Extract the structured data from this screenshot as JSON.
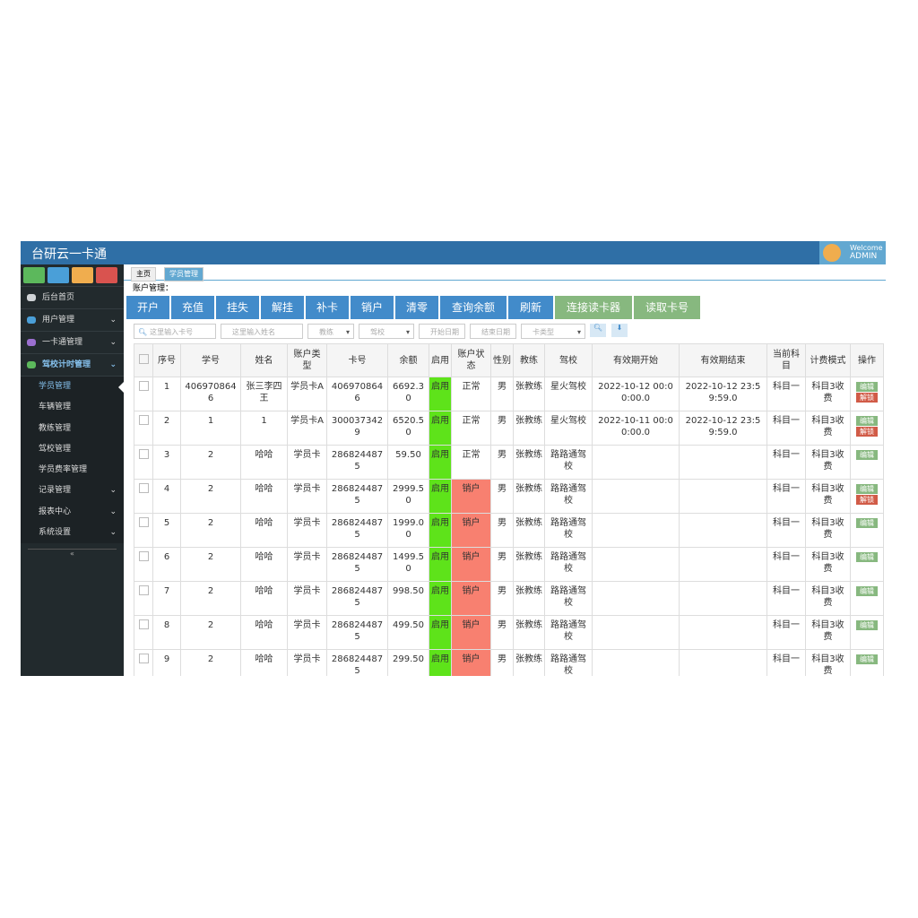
{
  "header": {
    "brand": "台研云一卡通",
    "welcome": "Welcome",
    "user": "ADMIN"
  },
  "sidebar": {
    "shortcut_colors": [
      "#5cb85c",
      "#4a9fd8",
      "#f0ad4e",
      "#d9534f"
    ],
    "items": [
      {
        "label": "后台首页",
        "icon_color": "#cfd3d6"
      },
      {
        "label": "用户管理",
        "icon_color": "#4a9fd8",
        "expand": true
      },
      {
        "label": "一卡通管理",
        "icon_color": "#9b6fd0",
        "expand": true
      },
      {
        "label": "驾校计时管理",
        "icon_color": "#5cb85c",
        "expand": true,
        "active": true
      }
    ],
    "subitems": [
      {
        "label": "学员管理",
        "active": true
      },
      {
        "label": "车辆管理"
      },
      {
        "label": "教练管理"
      },
      {
        "label": "驾校管理"
      },
      {
        "label": "学员费率管理"
      },
      {
        "label": "记录管理",
        "expand": true
      },
      {
        "label": "报表中心",
        "expand": true
      },
      {
        "label": "系统设置",
        "expand": true
      }
    ]
  },
  "tabs": [
    "主页",
    "学员管理"
  ],
  "section_label": "账户管理：",
  "buttons": [
    {
      "label": "开户",
      "color": "#428bca"
    },
    {
      "label": "充值",
      "color": "#428bca"
    },
    {
      "label": "挂失",
      "color": "#428bca"
    },
    {
      "label": "解挂",
      "color": "#428bca"
    },
    {
      "label": "补卡",
      "color": "#428bca"
    },
    {
      "label": "销户",
      "color": "#428bca"
    },
    {
      "label": "清零",
      "color": "#428bca"
    },
    {
      "label": "查询余额",
      "color": "#428bca"
    },
    {
      "label": "刷新",
      "color": "#428bca"
    },
    {
      "label": "连接读卡器",
      "color": "#87b87f"
    },
    {
      "label": "读取卡号",
      "color": "#87b87f"
    }
  ],
  "filters": [
    {
      "placeholder": "这里输入卡号",
      "width": 92,
      "search": true
    },
    {
      "placeholder": "这里输入姓名",
      "width": 92
    },
    {
      "placeholder": "教练",
      "width": 52,
      "select": true
    },
    {
      "placeholder": "驾校",
      "width": 62,
      "select": true
    },
    {
      "placeholder": "开始日期",
      "width": 52
    },
    {
      "placeholder": "结束日期",
      "width": 52
    },
    {
      "placeholder": "卡类型",
      "width": 72,
      "select": true
    }
  ],
  "table": {
    "enabled_color": "#5ee31a",
    "columns": [
      "序号",
      "学号",
      "姓名",
      "账户类型",
      "卡号",
      "余额",
      "启用",
      "账户状态",
      "性别",
      "教练",
      "驾校",
      "有效期开始",
      "有效期结束",
      "当前科目",
      "计费模式",
      "操作"
    ],
    "rows": [
      {
        "cells": [
          "1",
          "4069708646",
          "张三李四王",
          "学员卡A",
          "4069708646",
          "6692.30",
          "启用",
          "正常",
          "男",
          "张教练",
          "星火驾校",
          "2022-10-12 00:00:00.0",
          "2022-10-12 23:59:59.0",
          "科目一",
          "科目3收费"
        ],
        "status_color": "#ffffff",
        "actions": [
          "编辑",
          "解锁"
        ]
      },
      {
        "cells": [
          "2",
          "1",
          "1",
          "学员卡A",
          "3000373429",
          "6520.50",
          "启用",
          "正常",
          "男",
          "张教练",
          "星火驾校",
          "2022-10-11 00:00:00.0",
          "2022-10-12 23:59:59.0",
          "科目一",
          "科目3收费"
        ],
        "status_color": "#ffffff",
        "actions": [
          "编辑",
          "解锁"
        ]
      },
      {
        "cells": [
          "3",
          "2",
          "哈哈",
          "学员卡",
          "2868244875",
          "59.50",
          "启用",
          "正常",
          "男",
          "张教练",
          "路路通驾校",
          null,
          null,
          "科目一",
          "科目3收费"
        ],
        "status_color": "#ffffff",
        "actions": [
          "编辑"
        ]
      },
      {
        "cells": [
          "4",
          "2",
          "哈哈",
          "学员卡",
          "2868244875",
          "2999.50",
          "启用",
          "销户",
          "男",
          "张教练",
          "路路通驾校",
          null,
          null,
          "科目一",
          "科目3收费"
        ],
        "status_color": "#f88070",
        "actions": [
          "编辑",
          "解锁"
        ]
      },
      {
        "cells": [
          "5",
          "2",
          "哈哈",
          "学员卡",
          "2868244875",
          "1999.00",
          "启用",
          "销户",
          "男",
          "张教练",
          "路路通驾校",
          null,
          null,
          "科目一",
          "科目3收费"
        ],
        "status_color": "#f88070",
        "actions": [
          "编辑"
        ]
      },
      {
        "cells": [
          "6",
          "2",
          "哈哈",
          "学员卡",
          "2868244875",
          "1499.50",
          "启用",
          "销户",
          "男",
          "张教练",
          "路路通驾校",
          null,
          null,
          "科目一",
          "科目3收费"
        ],
        "status_color": "#f88070",
        "actions": [
          "编辑"
        ]
      },
      {
        "cells": [
          "7",
          "2",
          "哈哈",
          "学员卡",
          "2868244875",
          "998.50",
          "启用",
          "销户",
          "男",
          "张教练",
          "路路通驾校",
          null,
          null,
          "科目一",
          "科目3收费"
        ],
        "status_color": "#f88070",
        "actions": [
          "编辑"
        ]
      },
      {
        "cells": [
          "8",
          "2",
          "哈哈",
          "学员卡",
          "2868244875",
          "499.50",
          "启用",
          "销户",
          "男",
          "张教练",
          "路路通驾校",
          null,
          null,
          "科目一",
          "科目3收费"
        ],
        "status_color": "#f88070",
        "actions": [
          "编辑"
        ]
      },
      {
        "cells": [
          "9",
          "2",
          "哈哈",
          "学员卡",
          "2868244875",
          "299.50",
          "启用",
          "销户",
          "男",
          "张教练",
          "路路通驾校",
          null,
          null,
          "科目一",
          "科目3收费"
        ],
        "status_color": "#f88070",
        "actions": [
          "编辑"
        ]
      }
    ]
  }
}
